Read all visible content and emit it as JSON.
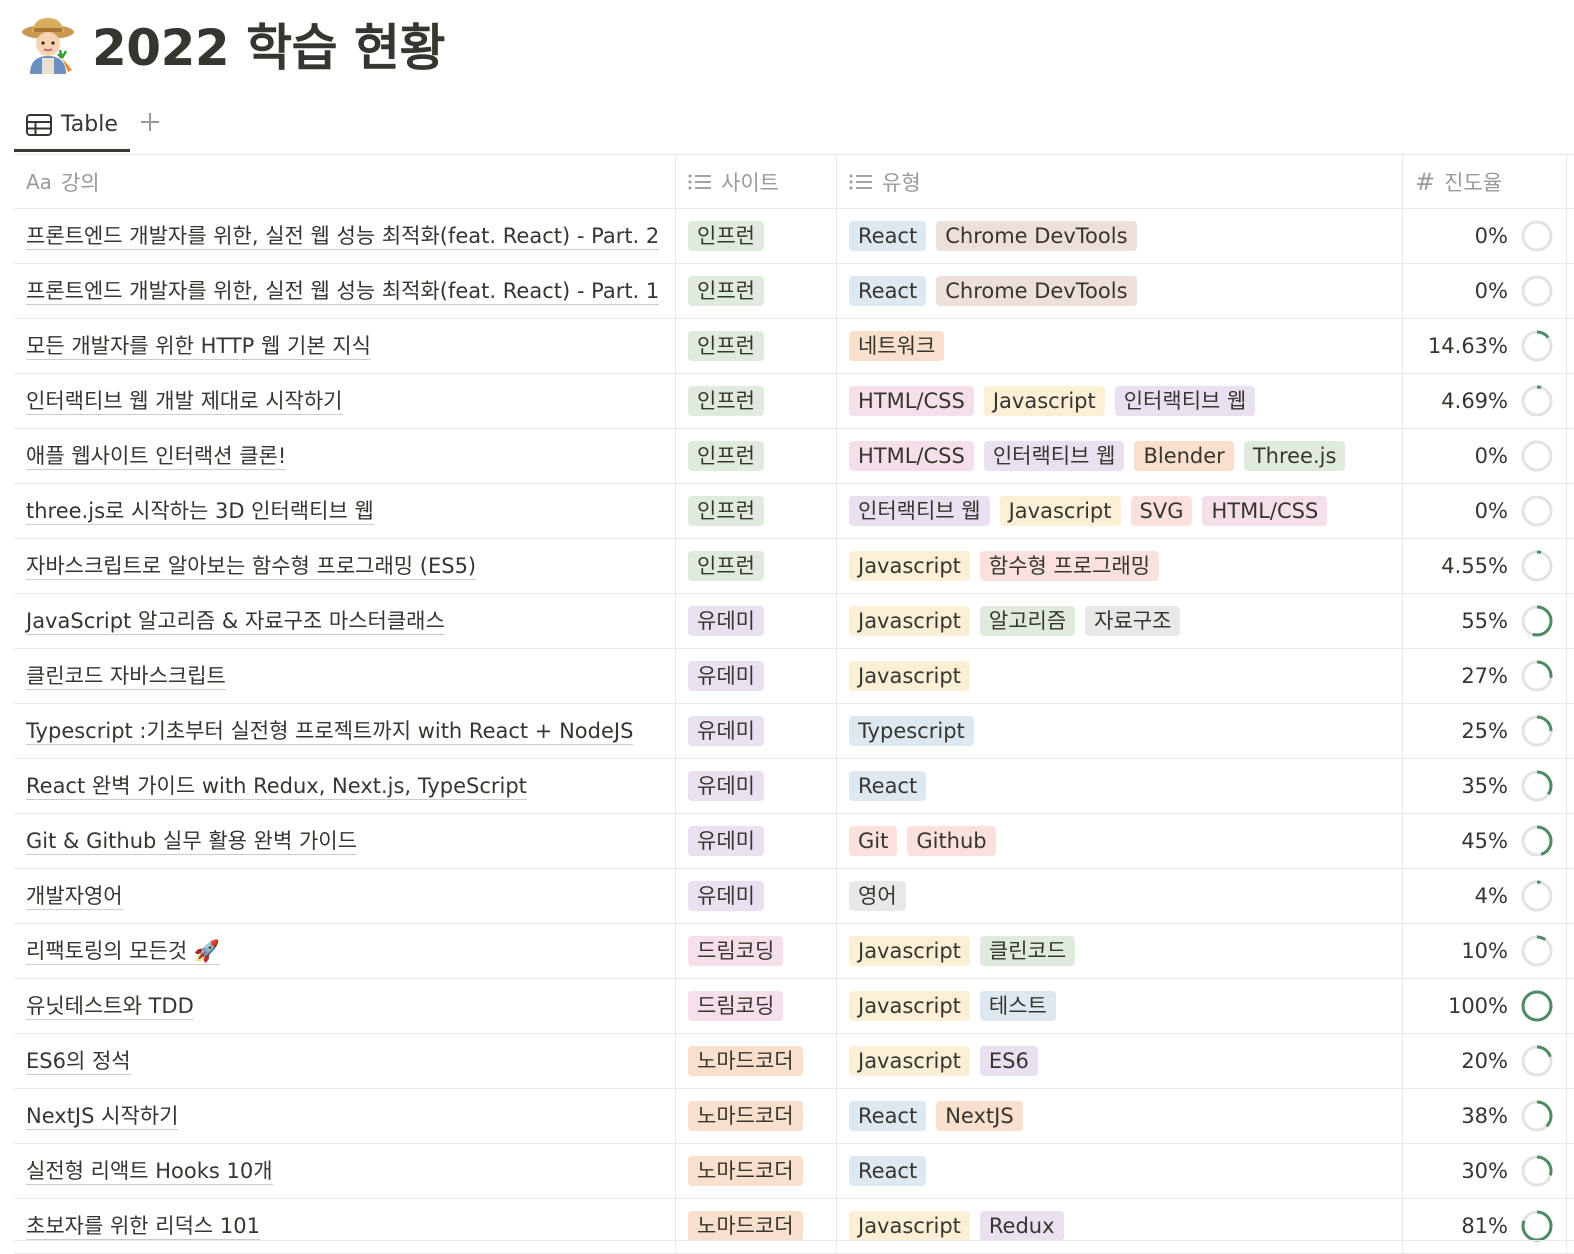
{
  "page": {
    "emoji_name": "farmer-emoji",
    "title": "2022 학습 현황"
  },
  "view": {
    "tab_label": "Table",
    "tab_icon": "table-icon",
    "add_icon": "plus-icon"
  },
  "columns": [
    {
      "icon": "Aa",
      "label": "강의"
    },
    {
      "icon": "list-icon",
      "label": "사이트"
    },
    {
      "icon": "list-icon",
      "label": "유형"
    },
    {
      "icon": "#",
      "label": "진도율"
    }
  ],
  "colors": {
    "blue": "#dde8f1",
    "brown": "#ece0d9",
    "orange": "#f9e0cc",
    "yellow": "#fbefd6",
    "green": "#dfecdd",
    "purple": "#e9e0f0",
    "pink": "#f4dfeb",
    "red": "#fbe1de",
    "gray": "#e9e8e6",
    "ring_fill": "#4c8b63",
    "ring_track": "#e3e2e0"
  },
  "rows": [
    {
      "title": "프론트엔드 개발자를 위한, 실전 웹 성능 최적화(feat. React) - Part. 2",
      "site": {
        "label": "인프런",
        "color": "green"
      },
      "types": [
        {
          "label": "React",
          "color": "blue"
        },
        {
          "label": "Chrome DevTools",
          "color": "brown"
        }
      ],
      "progress": "0%",
      "progress_value": 0
    },
    {
      "title": "프론트엔드 개발자를 위한, 실전 웹 성능 최적화(feat. React) - Part. 1",
      "site": {
        "label": "인프런",
        "color": "green"
      },
      "types": [
        {
          "label": "React",
          "color": "blue"
        },
        {
          "label": "Chrome DevTools",
          "color": "brown"
        }
      ],
      "progress": "0%",
      "progress_value": 0
    },
    {
      "title": "모든 개발자를 위한 HTTP 웹 기본 지식",
      "site": {
        "label": "인프런",
        "color": "green"
      },
      "types": [
        {
          "label": "네트워크",
          "color": "orange"
        }
      ],
      "progress": "14.63%",
      "progress_value": 0.1463
    },
    {
      "title": "인터랙티브 웹 개발 제대로 시작하기",
      "site": {
        "label": "인프런",
        "color": "green"
      },
      "types": [
        {
          "label": "HTML/CSS",
          "color": "pink"
        },
        {
          "label": "Javascript",
          "color": "yellow"
        },
        {
          "label": "인터랙티브 웹",
          "color": "purple"
        }
      ],
      "progress": "4.69%",
      "progress_value": 0.0469
    },
    {
      "title": "애플 웹사이트 인터랙션 클론!",
      "site": {
        "label": "인프런",
        "color": "green"
      },
      "types": [
        {
          "label": "HTML/CSS",
          "color": "pink"
        },
        {
          "label": "인터랙티브 웹",
          "color": "purple"
        },
        {
          "label": "Blender",
          "color": "orange"
        },
        {
          "label": "Three.js",
          "color": "green"
        }
      ],
      "progress": "0%",
      "progress_value": 0
    },
    {
      "title": "three.js로 시작하는 3D 인터랙티브 웹",
      "site": {
        "label": "인프런",
        "color": "green"
      },
      "types": [
        {
          "label": "인터랙티브 웹",
          "color": "purple"
        },
        {
          "label": "Javascript",
          "color": "yellow"
        },
        {
          "label": "SVG",
          "color": "red"
        },
        {
          "label": "HTML/CSS",
          "color": "pink"
        }
      ],
      "progress": "0%",
      "progress_value": 0
    },
    {
      "title": "자바스크립트로 알아보는 함수형 프로그래밍 (ES5)",
      "site": {
        "label": "인프런",
        "color": "green"
      },
      "types": [
        {
          "label": "Javascript",
          "color": "yellow"
        },
        {
          "label": "함수형 프로그래밍",
          "color": "red"
        }
      ],
      "progress": "4.55%",
      "progress_value": 0.0455
    },
    {
      "title": "JavaScript 알고리즘 & 자료구조 마스터클래스",
      "site": {
        "label": "유데미",
        "color": "purple"
      },
      "types": [
        {
          "label": "Javascript",
          "color": "yellow"
        },
        {
          "label": "알고리즘",
          "color": "green"
        },
        {
          "label": "자료구조",
          "color": "gray"
        }
      ],
      "progress": "55%",
      "progress_value": 0.55
    },
    {
      "title": "클린코드 자바스크립트",
      "site": {
        "label": "유데미",
        "color": "purple"
      },
      "types": [
        {
          "label": "Javascript",
          "color": "yellow"
        }
      ],
      "progress": "27%",
      "progress_value": 0.27
    },
    {
      "title": "Typescript :기초부터 실전형 프로젝트까지 with React + NodeJS",
      "site": {
        "label": "유데미",
        "color": "purple"
      },
      "types": [
        {
          "label": "Typescript",
          "color": "blue"
        }
      ],
      "progress": "25%",
      "progress_value": 0.25
    },
    {
      "title": "React 완벽 가이드 with Redux, Next.js, TypeScript",
      "site": {
        "label": "유데미",
        "color": "purple"
      },
      "types": [
        {
          "label": "React",
          "color": "blue"
        }
      ],
      "progress": "35%",
      "progress_value": 0.35
    },
    {
      "title": "Git & Github 실무 활용 완벽 가이드",
      "site": {
        "label": "유데미",
        "color": "purple"
      },
      "types": [
        {
          "label": "Git",
          "color": "red"
        },
        {
          "label": "Github",
          "color": "red"
        }
      ],
      "progress": "45%",
      "progress_value": 0.45
    },
    {
      "title": "개발자영어",
      "site": {
        "label": "유데미",
        "color": "purple"
      },
      "types": [
        {
          "label": "영어",
          "color": "gray"
        }
      ],
      "progress": "4%",
      "progress_value": 0.04
    },
    {
      "title": "리팩토링의 모든것 🚀",
      "site": {
        "label": "드림코딩",
        "color": "pink"
      },
      "types": [
        {
          "label": "Javascript",
          "color": "yellow"
        },
        {
          "label": "클린코드",
          "color": "green"
        }
      ],
      "progress": "10%",
      "progress_value": 0.1
    },
    {
      "title": "유닛테스트와 TDD",
      "site": {
        "label": "드림코딩",
        "color": "pink"
      },
      "types": [
        {
          "label": "Javascript",
          "color": "yellow"
        },
        {
          "label": "테스트",
          "color": "blue"
        }
      ],
      "progress": "100%",
      "progress_value": 1.0
    },
    {
      "title": "ES6의 정석",
      "site": {
        "label": "노마드코더",
        "color": "orange"
      },
      "types": [
        {
          "label": "Javascript",
          "color": "yellow"
        },
        {
          "label": "ES6",
          "color": "purple"
        }
      ],
      "progress": "20%",
      "progress_value": 0.2
    },
    {
      "title": "NextJS 시작하기",
      "site": {
        "label": "노마드코더",
        "color": "orange"
      },
      "types": [
        {
          "label": "React",
          "color": "blue"
        },
        {
          "label": "NextJS",
          "color": "orange"
        }
      ],
      "progress": "38%",
      "progress_value": 0.38
    },
    {
      "title": "실전형 리액트 Hooks 10개",
      "site": {
        "label": "노마드코더",
        "color": "orange"
      },
      "types": [
        {
          "label": "React",
          "color": "blue"
        }
      ],
      "progress": "30%",
      "progress_value": 0.3
    },
    {
      "title": "초보자를 위한 리덕스 101",
      "site": {
        "label": "노마드코더",
        "color": "orange"
      },
      "types": [
        {
          "label": "Javascript",
          "color": "yellow"
        },
        {
          "label": "Redux",
          "color": "purple"
        }
      ],
      "progress": "81%",
      "progress_value": 0.81
    }
  ]
}
